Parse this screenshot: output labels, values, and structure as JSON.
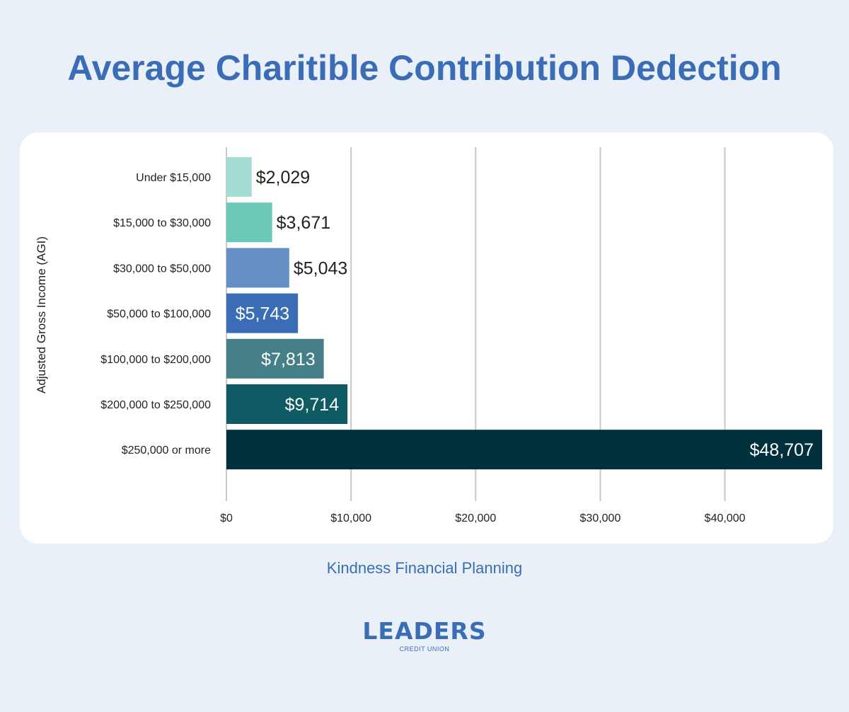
{
  "title": "Average Charitible Contribution Dedection",
  "source": "Kindness Financial Planning",
  "logo": {
    "name": "LEADERS",
    "tagline": "CREDIT UNION"
  },
  "chart_data": {
    "type": "bar",
    "orientation": "horizontal",
    "title": "Average Charitible Contribution Dedection",
    "ylabel": "Adjusted Gross Income (AGI)",
    "xlabel": "",
    "categories": [
      "Under $15,000",
      "$15,000 to $30,000",
      "$30,000 to $50,000",
      "$50,000 to $100,000",
      "$100,000 to $200,000",
      "$200,000 to $250,000",
      "$250,000 or more"
    ],
    "values": [
      2029,
      3671,
      5043,
      5743,
      7813,
      9714,
      48707
    ],
    "data_labels": [
      "$2,029",
      "$3,671",
      "$5,043",
      "$5,743",
      "$7,813",
      "$9,714",
      "$48,707"
    ],
    "colors": [
      "#a6ddd3",
      "#6ac8b7",
      "#658fc4",
      "#3a6db5",
      "#457f87",
      "#0e5b64",
      "#00303b"
    ],
    "label_colors": [
      "#222222",
      "#222222",
      "#222222",
      "#ffffff",
      "#ffffff",
      "#ffffff",
      "#ffffff"
    ],
    "xticks": [
      0,
      10000,
      20000,
      30000,
      40000
    ],
    "xtick_labels": [
      "$0",
      "$10,000",
      "$20,000",
      "$30,000",
      "$40,000"
    ],
    "xlim": [
      0,
      47800
    ],
    "grid": true,
    "legend": "none"
  }
}
